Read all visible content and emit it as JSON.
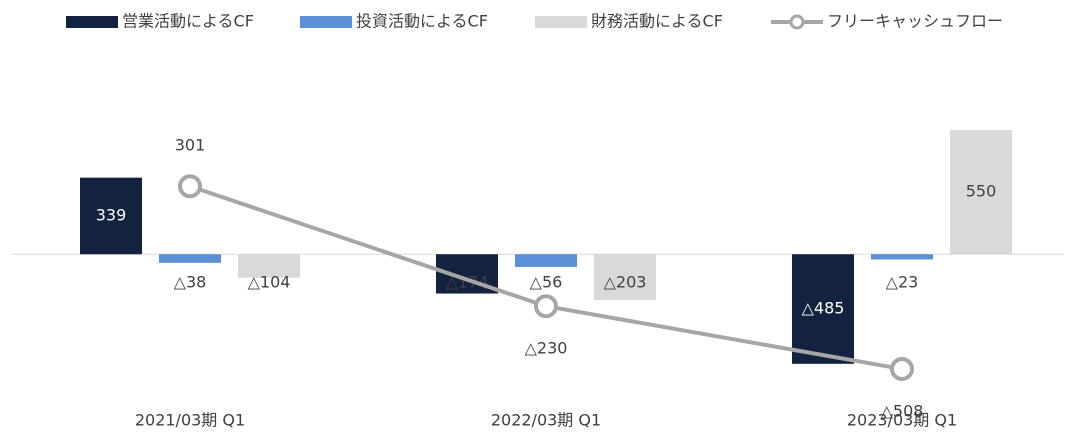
{
  "chart_data": {
    "type": "bar",
    "categories": [
      "2021/03期 Q1",
      "2022/03期 Q1",
      "2023/03期 Q1"
    ],
    "series": [
      {
        "name": "営業活動によるCF",
        "color": "#13233f",
        "values": [
          339,
          -174,
          -485
        ],
        "value_labels": [
          "339",
          "△174",
          "△485"
        ]
      },
      {
        "name": "投資活動によるCF",
        "color": "#5b8fd6",
        "values": [
          -38,
          -56,
          -23
        ],
        "value_labels": [
          "△38",
          "△56",
          "△23"
        ]
      },
      {
        "name": "財務活動によるCF",
        "color": "#d9d9d9",
        "values": [
          -104,
          -203,
          550
        ],
        "value_labels": [
          "△104",
          "△203",
          "550"
        ]
      },
      {
        "name": "フリーキャッシュフロー",
        "type": "line",
        "color": "#a6a6a6",
        "values": [
          301,
          -230,
          -508
        ],
        "value_labels": [
          "301",
          "△230",
          "△508"
        ]
      }
    ],
    "legend": "top"
  }
}
